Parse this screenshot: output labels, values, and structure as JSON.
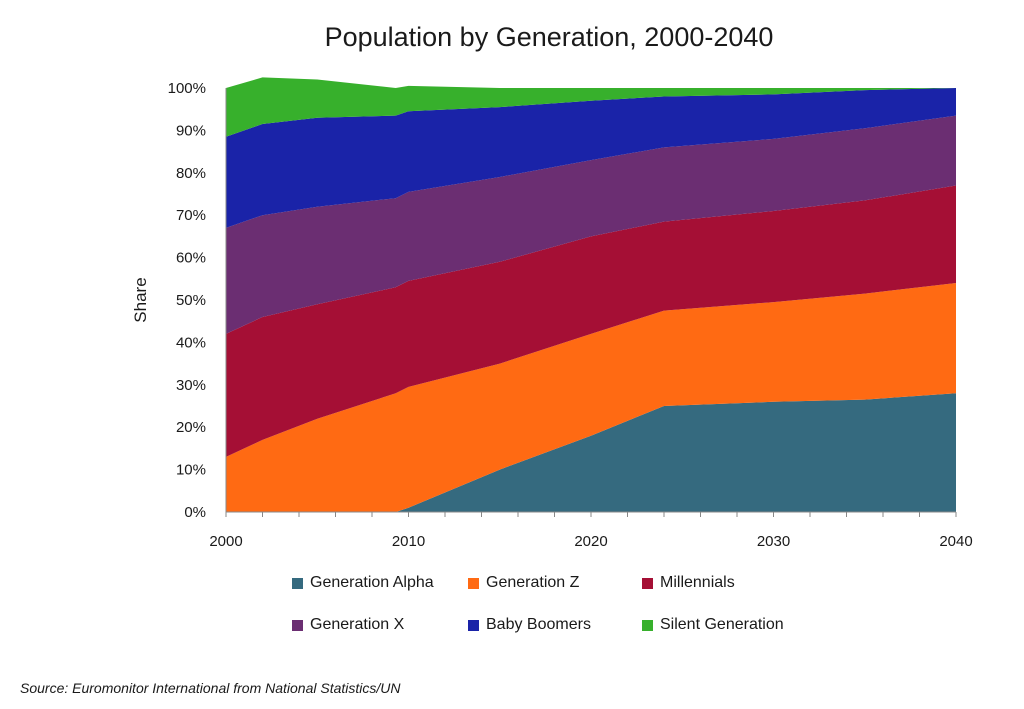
{
  "chart_data": {
    "type": "area",
    "stacked": true,
    "percent": true,
    "title": "Population by Generation, 2000-2040",
    "xlabel": "",
    "ylabel": "Share",
    "xlim": [
      2000,
      2040
    ],
    "ylim": [
      0,
      100
    ],
    "x_ticks": [
      "2000",
      "2010",
      "2020",
      "2030",
      "2040"
    ],
    "x_tick_values": [
      2000,
      2010,
      2020,
      2030,
      2040
    ],
    "y_ticks": [
      "0%",
      "10%",
      "20%",
      "30%",
      "40%",
      "50%",
      "60%",
      "70%",
      "80%",
      "90%",
      "100%"
    ],
    "x": [
      2000,
      2002,
      2005,
      2009.3,
      2010,
      2015,
      2020,
      2024,
      2030,
      2035,
      2040
    ],
    "series": [
      {
        "name": "Generation Alpha",
        "color": "#356A7F",
        "values": [
          0,
          0,
          0,
          0,
          1,
          10,
          18,
          25,
          26,
          26.5,
          28
        ]
      },
      {
        "name": "Generation Z",
        "color": "#FF6A13",
        "values": [
          13,
          17,
          22,
          28,
          28.5,
          25,
          24,
          22.5,
          23.5,
          25,
          26
        ]
      },
      {
        "name": "Millennials",
        "color": "#A50F35",
        "values": [
          29,
          29,
          27,
          25,
          25,
          24,
          23,
          21,
          21.5,
          22,
          23
        ]
      },
      {
        "name": "Generation X",
        "color": "#6B2E72",
        "values": [
          25,
          24,
          23,
          21,
          21,
          20,
          18,
          17.5,
          17,
          17,
          16.5
        ]
      },
      {
        "name": "Baby Boomers",
        "color": "#1A23A8",
        "values": [
          21.5,
          21.5,
          21,
          19.5,
          19,
          16.5,
          14,
          12,
          10.5,
          9,
          6.5
        ]
      },
      {
        "name": "Silent Generation",
        "color": "#37B02C",
        "values": [
          11.5,
          11,
          9,
          6.5,
          6,
          4.5,
          3,
          2,
          1.5,
          0.5,
          0
        ]
      }
    ],
    "source": "Source: Euromonitor International from National Statistics/UN"
  },
  "legend": [
    {
      "label": "Generation Alpha",
      "color": "#356A7F"
    },
    {
      "label": "Generation Z",
      "color": "#FF6A13"
    },
    {
      "label": "Millennials",
      "color": "#A50F35"
    },
    {
      "label": "Generation X",
      "color": "#6B2E72"
    },
    {
      "label": "Baby Boomers",
      "color": "#1A23A8"
    },
    {
      "label": "Silent Generation",
      "color": "#37B02C"
    }
  ]
}
